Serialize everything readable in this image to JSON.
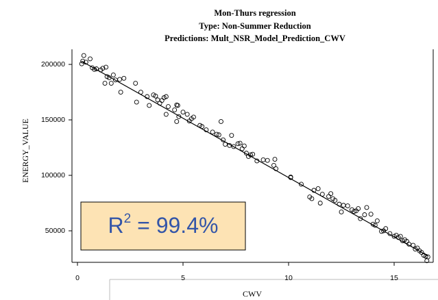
{
  "chart_data": {
    "type": "scatter",
    "title": "Mon-Thurs regression",
    "subtitle": [
      "Type: Non-Summer Reduction",
      "Predictions: Mult_NSR_Model_Prediction_CWV"
    ],
    "xlabel": "CWV",
    "ylabel": "ENERGY_VALUE",
    "xlim": [
      -0.26,
      16.85
    ],
    "ylim": [
      21600,
      213600
    ],
    "xticks": [
      0,
      5,
      10,
      15
    ],
    "yticks": [
      50000,
      100000,
      150000,
      200000
    ],
    "annotation": [
      "R",
      "2",
      " = 99.4%"
    ],
    "series": [
      {
        "color": "#000000",
        "x": [
          0.2,
          0.25,
          0.3,
          0.4,
          0.6,
          0.7,
          0.8,
          0.9,
          1.1,
          1.2,
          1.3,
          1.35,
          1.4,
          1.5,
          1.6,
          1.7,
          1.8,
          2.0,
          2.05,
          2.2,
          2.8,
          2.75,
          3.0,
          3.3,
          3.4,
          3.6,
          3.7,
          3.8,
          3.9,
          4.0,
          4.1,
          4.2,
          4.2,
          4.3,
          4.6,
          4.7,
          4.75,
          4.7,
          4.8,
          5.0,
          5.2,
          5.3,
          5.4,
          5.5,
          5.8,
          5.9,
          6.1,
          6.4,
          6.6,
          6.7,
          6.8,
          6.9,
          7.0,
          7.2,
          7.3,
          7.4,
          7.6,
          7.7,
          7.8,
          7.9,
          8.0,
          8.1,
          8.2,
          8.3,
          8.5,
          8.8,
          9.0,
          9.3,
          9.35,
          9.4,
          10.1,
          10.1,
          10.6,
          11.0,
          11.1,
          11.2,
          11.4,
          11.5,
          11.6,
          11.9,
          12.0,
          12.1,
          12.2,
          12.4,
          12.5,
          12.6,
          12.8,
          13.0,
          13.1,
          13.2,
          13.3,
          13.4,
          13.6,
          13.7,
          13.9,
          14.0,
          14.1,
          14.2,
          14.4,
          14.5,
          14.6,
          14.8,
          15.0,
          15.1,
          15.2,
          15.3,
          15.4,
          15.5,
          15.6,
          15.7,
          15.9,
          16.0,
          16.1,
          16.2,
          16.3,
          16.4,
          16.5,
          16.55,
          16.6
        ],
        "values": [
          200500,
          203000,
          208000,
          202000,
          205000,
          197000,
          195500,
          196000,
          195000,
          196500,
          183000,
          197500,
          189000,
          188000,
          183000,
          190500,
          186000,
          186500,
          175000,
          187500,
          166000,
          183000,
          175000,
          171000,
          163000,
          172500,
          171500,
          168000,
          165000,
          167500,
          170000,
          155000,
          171000,
          162000,
          159000,
          163500,
          163000,
          148500,
          153000,
          157000,
          155000,
          149000,
          151000,
          152500,
          145000,
          144000,
          141000,
          139000,
          137000,
          136500,
          148500,
          132000,
          128000,
          127000,
          136000,
          126000,
          128500,
          129000,
          124000,
          126500,
          120000,
          117000,
          118500,
          119000,
          113000,
          114000,
          113500,
          109000,
          114500,
          106000,
          98500,
          98000,
          92000,
          80500,
          79000,
          86500,
          88000,
          75000,
          83000,
          81000,
          83500,
          79000,
          77500,
          74000,
          67000,
          73000,
          72500,
          69000,
          67500,
          68000,
          70000,
          61000,
          64500,
          71000,
          65000,
          56000,
          55000,
          59000,
          49500,
          50000,
          52000,
          47500,
          45000,
          46000,
          44000,
          45000,
          41000,
          42000,
          40500,
          38000,
          37000,
          33500,
          34500,
          32000,
          30500,
          28000,
          27000,
          23000,
          26500
        ]
      },
      {
        "type": "line",
        "color": "#000000",
        "x": [
          0.2,
          16.6
        ],
        "values": [
          202860,
          27380
        ]
      }
    ]
  }
}
